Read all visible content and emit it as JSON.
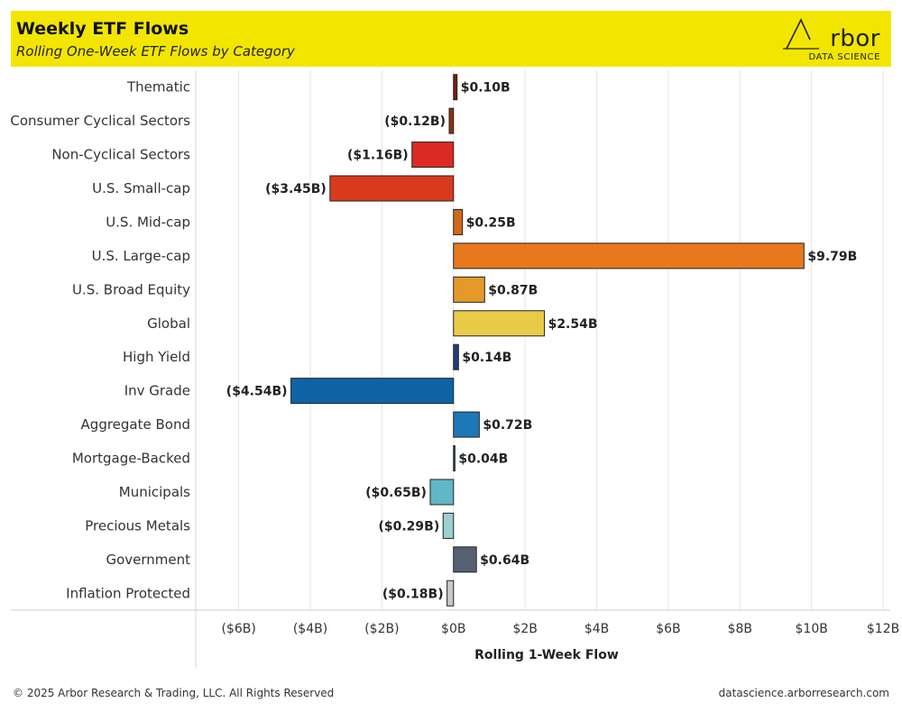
{
  "header": {
    "title": "Weekly ETF Flows",
    "subtitle": "Rolling One-Week ETF Flows by Category"
  },
  "logo": {
    "brand": "rbor",
    "sub": "DATA SCIENCE"
  },
  "footer": {
    "copyright": "© 2025 Arbor Research & Trading, LLC. All Rights Reserved",
    "url": "datascience.arborresearch.com"
  },
  "chart_data": {
    "type": "bar",
    "orientation": "horizontal",
    "title": "",
    "xlabel": "Rolling 1-Week Flow",
    "ylabel": "",
    "xlim": [
      -7.2,
      12.2
    ],
    "xticks": [
      -6,
      -4,
      -2,
      0,
      2,
      4,
      6,
      8,
      10,
      12
    ],
    "xtick_labels": [
      "($6B)",
      "($4B)",
      "($2B)",
      "$0B",
      "$2B",
      "$4B",
      "$6B",
      "$8B",
      "$10B",
      "$12B"
    ],
    "grid": true,
    "categories": [
      "Thematic",
      "Consumer Cyclical Sectors",
      "Non-Cyclical Sectors",
      "U.S. Small-cap",
      "U.S. Mid-cap",
      "U.S. Large-cap",
      "U.S. Broad Equity",
      "Global",
      "High Yield",
      "Inv Grade",
      "Aggregate Bond",
      "Mortgage-Backed",
      "Municipals",
      "Precious Metals",
      "Government",
      "Inflation Protected"
    ],
    "values": [
      0.1,
      -0.12,
      -1.16,
      -3.45,
      0.25,
      9.79,
      0.87,
      2.54,
      0.14,
      -4.54,
      0.72,
      0.04,
      -0.65,
      -0.29,
      0.64,
      -0.18
    ],
    "value_labels": [
      "$0.10B",
      "($0.12B)",
      "($1.16B)",
      "($3.45B)",
      "$0.25B",
      "$9.79B",
      "$0.87B",
      "$2.54B",
      "$0.14B",
      "($4.54B)",
      "$0.72B",
      "$0.04B",
      "($0.65B)",
      "($0.29B)",
      "$0.64B",
      "($0.18B)"
    ],
    "colors": [
      "#7a1b12",
      "#8a3416",
      "#dc2a22",
      "#d83a1e",
      "#cf6a1a",
      "#e8781e",
      "#e39a28",
      "#eacb48",
      "#1f3d7a",
      "#0e63a6",
      "#1d78b8",
      "#1a4a78",
      "#5fb8c6",
      "#9ccfd0",
      "#566070",
      "#c8c8c8"
    ]
  }
}
